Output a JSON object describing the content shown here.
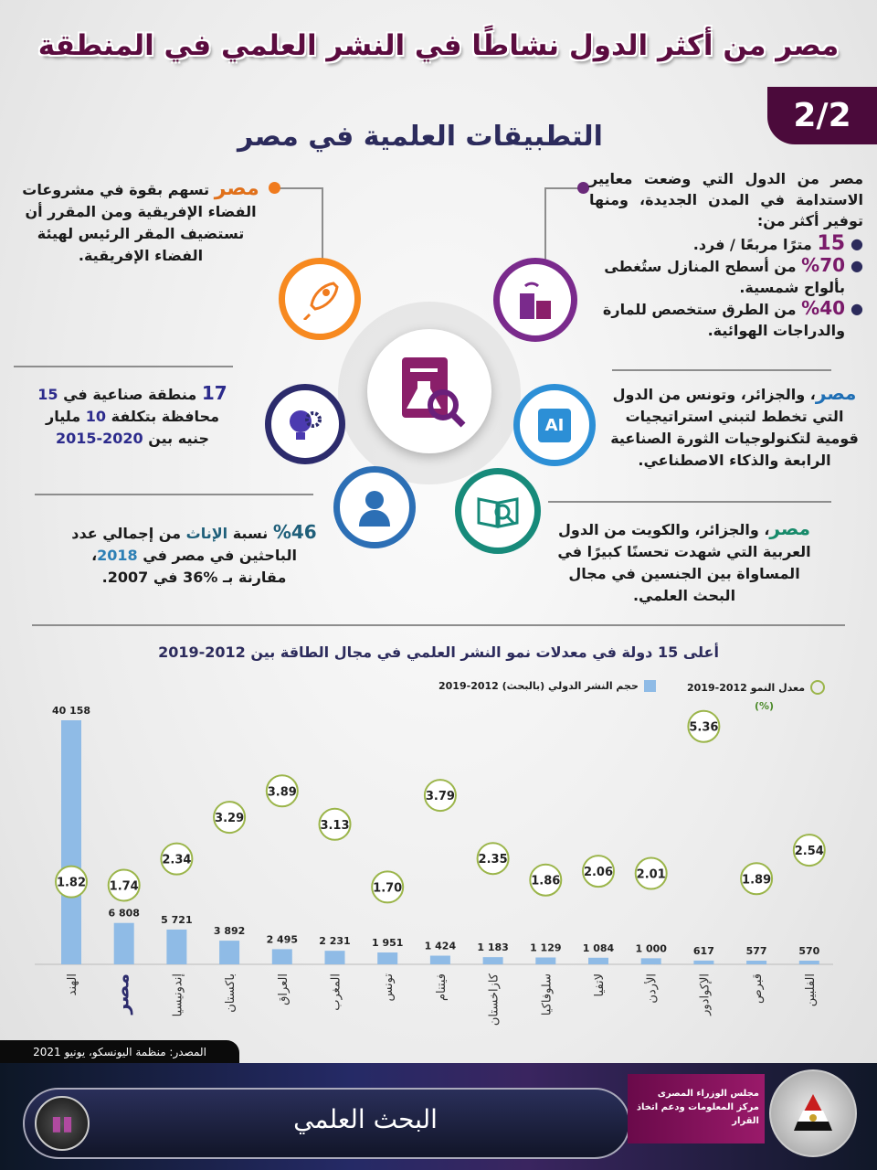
{
  "header": {
    "title": "مصر من أكثر الدول نشاطًا في النشر العلمي في المنطقة",
    "page_badge": "2/2",
    "subtitle": "التطبيقات العلمية في مصر"
  },
  "facts": {
    "cities": {
      "intro": "مصر من الدول التي وضعت معايير الاستدامة في المدن الجديدة، ومنها توفير أكثر من:",
      "bullets": [
        {
          "value": "15",
          "text": "مترًا مربعًا / فرد."
        },
        {
          "value": "%70",
          "text": "من أسطح المنازل ستُغطى بألواح شمسية."
        },
        {
          "value": "%40",
          "text": "من الطرق ستخصص للمارة والدراجات الهوائية."
        }
      ]
    },
    "space": {
      "highlight": "مصر",
      "text": "تسهم بقوة في مشروعات الفضاء الإفريقية ومن المقرر أن تستضيف المقر الرئيس لهيئة الفضاء الإفريقية."
    },
    "industry": {
      "n1": "17",
      "t1": "منطقة صناعية في",
      "n2": "15",
      "t2": "محافظة بتكلفة",
      "n3": "10",
      "t3": "مليار جنيه بين",
      "n4": "2020-2015"
    },
    "ai": {
      "highlight": "مصر",
      "text": "، والجزائر، وتونس من الدول التي تخطط لتبني استراتيجيات قومية لتكنولوجيات الثورة الصناعية الرابعة والذكاء الاصطناعي."
    },
    "women": {
      "n1": "%46",
      "t1": "نسبة",
      "h1": "الإناث",
      "t2": "من إجمالي عدد الباحثين في مصر في",
      "h2": "2018",
      "t3": "، مقارنة بـ %36 في 2007."
    },
    "gender": {
      "highlight": "مصر",
      "text": "، والجزائر، والكويت من الدول العربية التي شهدت تحسنًا كبيرًا في المساواة بين الجنسين في مجال البحث العلمي."
    }
  },
  "icons": {
    "center": "document-flask-icon",
    "cities": "smart-building-icon",
    "space": "rocket-icon",
    "industry": "bulb-gear-icon",
    "ai": "ai-chip-icon",
    "women": "person-icon",
    "gender": "book-search-icon"
  },
  "colors": {
    "maroon": "#4b0a3b",
    "orange": "#f7891f",
    "purple": "#7a2a8c",
    "navy": "#2c2b5c",
    "blue": "#2c8fd6",
    "teal": "#178a7a",
    "bar": "#8fbbe6",
    "ring": "#9bb54a"
  },
  "chart_data": {
    "type": "bar",
    "title": "أعلى 15 دولة في معدلات نمو النشر العلمي في مجال الطاقة بين 2012-2019",
    "legend": {
      "bars": "حجم النشر الدولي (بالبحث) 2012-2019",
      "circles": "معدل النمو 2012-2019",
      "circles_unit": "(%)"
    },
    "categories": [
      "الهند",
      "مصر",
      "إندونيسيا",
      "باكستان",
      "العراق",
      "المغرب",
      "تونس",
      "فيتنام",
      "كازاخستان",
      "سلوفاكيا",
      "لاتفيا",
      "الأردن",
      "الإكوادور",
      "قبرص",
      "الفلبين"
    ],
    "series": [
      {
        "name": "حجم النشر الدولي (بالبحث) 2012-2019",
        "values": [
          40158,
          6808,
          5721,
          3892,
          2495,
          2231,
          1951,
          1424,
          1183,
          1129,
          1084,
          1000,
          617,
          577,
          570
        ],
        "labels": [
          "40 158",
          "6 808",
          "5 721",
          "3 892",
          "2 495",
          "2 231",
          "1 951",
          "1 424",
          "1 183",
          "1 129",
          "1 084",
          "1 000",
          "617",
          "577",
          "570"
        ]
      },
      {
        "name": "معدل النمو 2012-2019",
        "values": [
          1.82,
          1.74,
          2.34,
          3.29,
          3.89,
          3.13,
          1.7,
          3.79,
          2.35,
          1.86,
          2.06,
          2.01,
          5.36,
          1.89,
          2.54
        ],
        "labels": [
          "1.82",
          "1.74",
          "2.34",
          "3.29",
          "3.89",
          "3.13",
          "1.70",
          "3.79",
          "2.35",
          "1.86",
          "2.06",
          "2.01",
          "5.36",
          "1.89",
          "2.54"
        ]
      }
    ],
    "highlight_category": "مصر"
  },
  "footer": {
    "source": "المصدر: منظمة اليونسكو، يونيو 2021",
    "banner": "البحث العلمي",
    "org_line1": "مجلس الوزراء المصرى",
    "org_line2": "مركز المعلومات ودعم اتخاذ القرار"
  }
}
